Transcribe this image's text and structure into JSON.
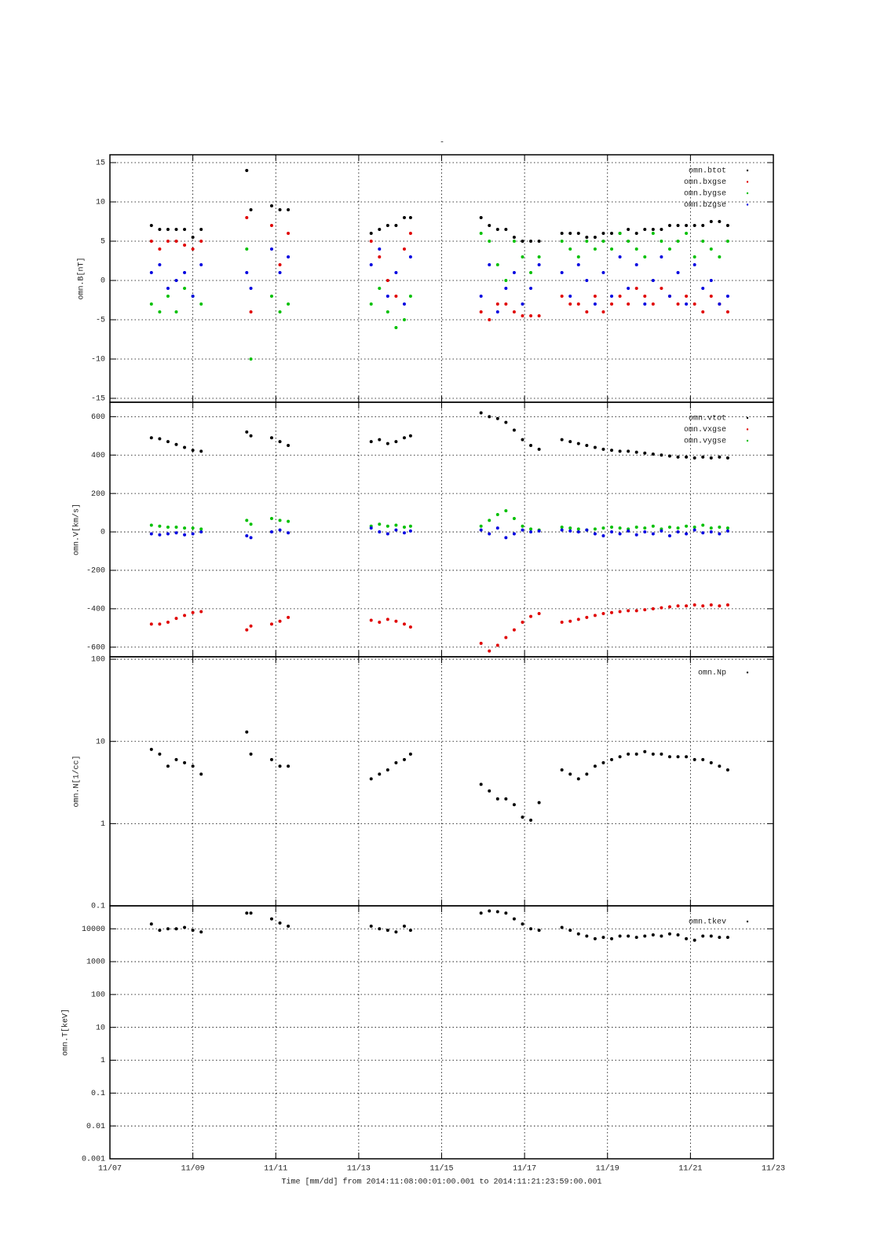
{
  "chart_data": [
    {
      "type": "scatter",
      "title": "-",
      "ylabel": "omn.B[nT]",
      "ylim": [
        -15.5,
        16
      ],
      "yticks": [
        -15,
        -10,
        -5,
        0,
        5,
        10,
        15
      ],
      "xlim": [
        7,
        23
      ],
      "grid": true,
      "legend": "upper right",
      "x": [
        8.0,
        8.2,
        8.4,
        8.6,
        8.8,
        9.0,
        9.2,
        10.3,
        10.4,
        10.9,
        11.1,
        11.3,
        13.3,
        13.5,
        13.7,
        13.9,
        14.1,
        14.25,
        15.95,
        16.15,
        16.35,
        16.55,
        16.75,
        16.95,
        17.15,
        17.35,
        17.9,
        18.1,
        18.3,
        18.5,
        18.7,
        18.9,
        19.1,
        19.3,
        19.5,
        19.7,
        19.9,
        20.1,
        20.3,
        20.5,
        20.7,
        20.9,
        21.1,
        21.3,
        21.5,
        21.7,
        21.9
      ],
      "series": [
        {
          "name": "omn.btot",
          "color": "#000000",
          "values": [
            7,
            6.5,
            6.5,
            6.5,
            6.5,
            5.5,
            6.5,
            14,
            9,
            9.5,
            9,
            9,
            6,
            6.5,
            7,
            7,
            8,
            8,
            8,
            7,
            6.5,
            6.5,
            5.5,
            5,
            5,
            5,
            6,
            6,
            6,
            5.5,
            5.5,
            6,
            6,
            6,
            6.5,
            6,
            6.5,
            6.5,
            6.5,
            7,
            7,
            7,
            7,
            7,
            7.5,
            7.5,
            7
          ]
        },
        {
          "name": "omn.bxgse",
          "color": "#e00000",
          "values": [
            5,
            4,
            5,
            5,
            4.5,
            4,
            5,
            8,
            -4,
            7,
            2,
            6,
            5,
            3,
            0,
            -2,
            4,
            6,
            -4,
            -5,
            -3,
            -3,
            -4,
            -4.5,
            -4.5,
            -4.5,
            -2,
            -3,
            -3,
            -4,
            -2,
            -4,
            -3,
            -2,
            -3,
            -1,
            -2,
            -3,
            -1,
            -2,
            -3,
            -2,
            -3,
            -4,
            -2,
            -3,
            -4
          ]
        },
        {
          "name": "omn.bygse",
          "color": "#00c000",
          "values": [
            -3,
            -4,
            -2,
            -4,
            -1,
            -2,
            -3,
            4,
            -10,
            -2,
            -4,
            -3,
            -3,
            -1,
            -4,
            -6,
            -5,
            -2,
            6,
            5,
            2,
            0,
            5,
            3,
            1,
            3,
            5,
            4,
            3,
            5,
            4,
            5,
            4,
            6,
            5,
            4,
            3,
            6,
            5,
            4,
            5,
            6,
            3,
            5,
            4,
            3,
            5
          ]
        },
        {
          "name": "omn.bzgse",
          "color": "#0000e0",
          "values": [
            1,
            2,
            -1,
            0,
            1,
            -2,
            2,
            1,
            -1,
            4,
            1,
            3,
            2,
            4,
            -2,
            1,
            -3,
            3,
            -2,
            2,
            -4,
            -1,
            1,
            -3,
            -1,
            2,
            1,
            -2,
            2,
            0,
            -3,
            1,
            -2,
            3,
            -1,
            2,
            -3,
            0,
            3,
            -2,
            1,
            -3,
            2,
            -1,
            0,
            -3,
            -2
          ]
        }
      ]
    },
    {
      "type": "scatter",
      "ylabel": "omn.V[km/s]",
      "ylim": [
        -650,
        675
      ],
      "yticks": [
        -600,
        -400,
        -200,
        0,
        200,
        400,
        600
      ],
      "xlim": [
        7,
        23
      ],
      "grid": true,
      "legend": "upper right",
      "x": [
        8.0,
        8.2,
        8.4,
        8.6,
        8.8,
        9.0,
        9.2,
        10.3,
        10.4,
        10.9,
        11.1,
        11.3,
        13.3,
        13.5,
        13.7,
        13.9,
        14.1,
        14.25,
        15.95,
        16.15,
        16.35,
        16.55,
        16.75,
        16.95,
        17.15,
        17.35,
        17.9,
        18.1,
        18.3,
        18.5,
        18.7,
        18.9,
        19.1,
        19.3,
        19.5,
        19.7,
        19.9,
        20.1,
        20.3,
        20.5,
        20.7,
        20.9,
        21.1,
        21.3,
        21.5,
        21.7,
        21.9
      ],
      "series": [
        {
          "name": "omn.vtot",
          "color": "#000000",
          "values": [
            490,
            485,
            470,
            455,
            440,
            425,
            420,
            520,
            500,
            490,
            470,
            450,
            470,
            480,
            460,
            470,
            490,
            500,
            620,
            600,
            590,
            570,
            530,
            480,
            450,
            430,
            480,
            470,
            460,
            450,
            440,
            430,
            425,
            420,
            420,
            415,
            410,
            405,
            400,
            395,
            390,
            390,
            385,
            390,
            385,
            390,
            385
          ]
        },
        {
          "name": "omn.vxgse",
          "color": "#e00000",
          "values": [
            -480,
            -480,
            -470,
            -450,
            -435,
            -420,
            -415,
            -510,
            -490,
            -480,
            -465,
            -445,
            -460,
            -470,
            -455,
            -465,
            -480,
            -495,
            -580,
            -620,
            -590,
            -550,
            -510,
            -470,
            -440,
            -425,
            -470,
            -465,
            -455,
            -445,
            -435,
            -425,
            -420,
            -415,
            -410,
            -410,
            -405,
            -400,
            -395,
            -390,
            -385,
            -385,
            -380,
            -385,
            -380,
            -385,
            -380
          ]
        },
        {
          "name": "omn.vygse",
          "color": "#00c000",
          "values": [
            35,
            30,
            25,
            25,
            20,
            20,
            15,
            60,
            40,
            70,
            60,
            55,
            30,
            40,
            30,
            35,
            25,
            30,
            30,
            60,
            90,
            110,
            70,
            30,
            15,
            10,
            25,
            20,
            15,
            10,
            15,
            20,
            25,
            20,
            15,
            25,
            20,
            30,
            15,
            25,
            20,
            30,
            25,
            35,
            20,
            25,
            20
          ]
        },
        {
          "color": "#0000e0",
          "values": [
            -10,
            -15,
            -10,
            -5,
            -15,
            -10,
            0,
            -20,
            -30,
            0,
            10,
            -5,
            20,
            0,
            -10,
            10,
            -5,
            5,
            10,
            -10,
            20,
            -30,
            -10,
            10,
            0,
            5,
            10,
            5,
            0,
            10,
            -10,
            -20,
            0,
            -10,
            5,
            -15,
            0,
            -10,
            5,
            -20,
            0,
            -10,
            10,
            -5,
            0,
            -10,
            5
          ]
        }
      ]
    },
    {
      "type": "scatter",
      "ylabel": "omn.N[1/cc]",
      "ylog": true,
      "ylim": [
        0.1,
        107
      ],
      "yticks": [
        0.1,
        1,
        10,
        100
      ],
      "xlim": [
        7,
        23
      ],
      "grid": true,
      "legend": "upper right",
      "x": [
        8.0,
        8.2,
        8.4,
        8.6,
        8.8,
        9.0,
        9.2,
        10.3,
        10.4,
        10.9,
        11.1,
        11.3,
        13.3,
        13.5,
        13.7,
        13.9,
        14.1,
        14.25,
        15.95,
        16.15,
        16.35,
        16.55,
        16.75,
        16.95,
        17.15,
        17.35,
        17.9,
        18.1,
        18.3,
        18.5,
        18.7,
        18.9,
        19.1,
        19.3,
        19.5,
        19.7,
        19.9,
        20.1,
        20.3,
        20.5,
        20.7,
        20.9,
        21.1,
        21.3,
        21.5,
        21.7,
        21.9
      ],
      "series": [
        {
          "name": "omn.Np",
          "color": "#000000",
          "values": [
            8,
            7,
            5,
            6,
            5.5,
            5,
            4,
            13,
            7,
            6,
            5,
            5,
            3.5,
            4,
            4.5,
            5.5,
            6,
            7,
            3,
            2.5,
            2,
            2,
            1.7,
            1.2,
            1.1,
            1.8,
            4.5,
            4,
            3.5,
            4,
            5,
            5.5,
            6,
            6.5,
            7,
            7,
            7.5,
            7,
            7,
            6.5,
            6.5,
            6.5,
            6,
            6,
            5.5,
            5,
            4.5
          ]
        }
      ]
    },
    {
      "type": "scatter",
      "ylabel": "omn.T[keV]",
      "xlabel": "Time [mm/dd]  from 2014:11:08:00:01:00.001  to  2014:11:21:23:59:00.001",
      "ylog": true,
      "ylim": [
        0.001,
        50000
      ],
      "yticks": [
        0.001,
        0.01,
        0.1,
        1,
        10,
        100,
        1000,
        10000
      ],
      "xlim": [
        7,
        23
      ],
      "grid": true,
      "legend": "upper right",
      "xticks": [
        {
          "value": 7,
          "label": "11/07"
        },
        {
          "value": 9,
          "label": "11/09"
        },
        {
          "value": 11,
          "label": "11/11"
        },
        {
          "value": 13,
          "label": "11/13"
        },
        {
          "value": 15,
          "label": "11/15"
        },
        {
          "value": 17,
          "label": "11/17"
        },
        {
          "value": 19,
          "label": "11/19"
        },
        {
          "value": 21,
          "label": "11/21"
        },
        {
          "value": 23,
          "label": "11/23"
        }
      ],
      "x": [
        8.0,
        8.2,
        8.4,
        8.6,
        8.8,
        9.0,
        9.2,
        10.3,
        10.4,
        10.9,
        11.1,
        11.3,
        13.3,
        13.5,
        13.7,
        13.9,
        14.1,
        14.25,
        15.95,
        16.15,
        16.35,
        16.55,
        16.75,
        16.95,
        17.15,
        17.35,
        17.9,
        18.1,
        18.3,
        18.5,
        18.7,
        18.9,
        19.1,
        19.3,
        19.5,
        19.7,
        19.9,
        20.1,
        20.3,
        20.5,
        20.7,
        20.9,
        21.1,
        21.3,
        21.5,
        21.7,
        21.9
      ],
      "series": [
        {
          "name": "omn.tkev",
          "color": "#000000",
          "values": [
            14000,
            9000,
            10000,
            10000,
            11000,
            9000,
            8000,
            30000,
            30000,
            20000,
            15000,
            12000,
            12000,
            10000,
            9000,
            8000,
            12000,
            9000,
            30000,
            35000,
            33000,
            30000,
            20000,
            14000,
            10000,
            9000,
            11000,
            9000,
            7000,
            6000,
            5000,
            5500,
            5000,
            6000,
            6000,
            5500,
            6000,
            6500,
            6000,
            7000,
            6500,
            5000,
            4500,
            6000,
            6000,
            5500,
            5500
          ]
        }
      ]
    }
  ]
}
